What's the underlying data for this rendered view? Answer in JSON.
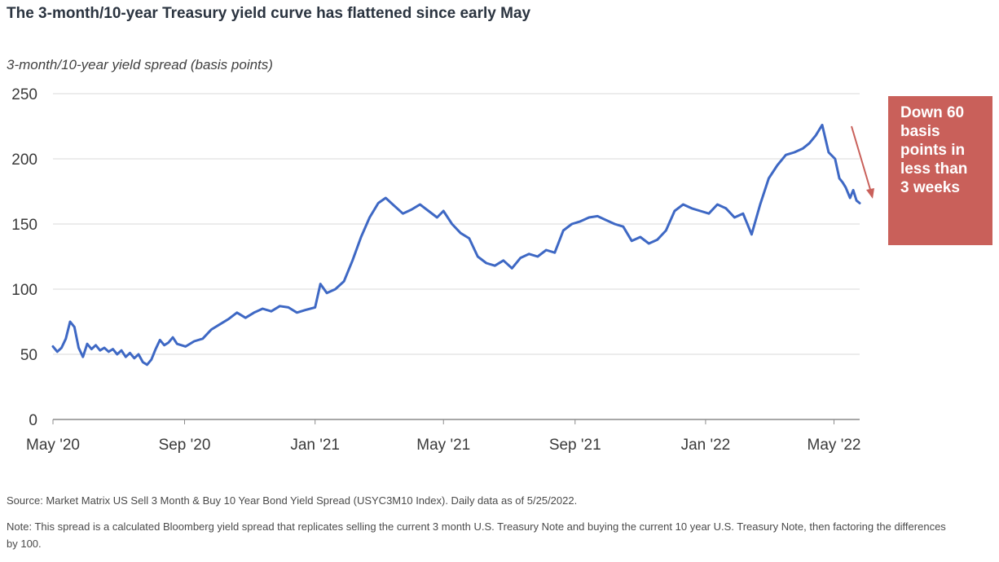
{
  "title": "The 3-month/10-year Treasury yield curve has flattened since early May",
  "callout": {
    "lines": [
      "Down 60",
      "basis",
      "points in",
      "less than",
      "3 weeks"
    ]
  },
  "footer": {
    "source": "Source: Market Matrix US Sell 3 Month & Buy 10 Year Bond Yield Spread (USYC3M10 Index).  Daily data as of 5/25/2022.",
    "note": "Note: This spread is a calculated Bloomberg yield spread that replicates selling the current 3 month U.S. Treasury Note and buying the current 10 year U.S. Treasury Note, then factoring the differences by 100."
  },
  "colors": {
    "line": "#3e68c4",
    "callout": "#c9605a",
    "arrow": "#c9605a",
    "grid": "#d9d9d9"
  },
  "chart_data": {
    "type": "line",
    "title": "The 3-month/10-year Treasury yield curve has flattened since early May",
    "xlabel": "",
    "ylabel": "3-month/10-year yield spread (basis points)",
    "ylim": [
      0,
      250
    ],
    "yticks": [
      0,
      50,
      100,
      150,
      200,
      250
    ],
    "xlim": [
      "2020-05-01",
      "2022-05-25"
    ],
    "xticks": [
      {
        "date": "2020-05-01",
        "label": "May '20"
      },
      {
        "date": "2020-09-01",
        "label": "Sep '20"
      },
      {
        "date": "2021-01-01",
        "label": "Jan '21"
      },
      {
        "date": "2021-05-01",
        "label": "May '21"
      },
      {
        "date": "2021-09-01",
        "label": "Sep '21"
      },
      {
        "date": "2022-01-01",
        "label": "Jan '22"
      },
      {
        "date": "2022-05-01",
        "label": "May '22"
      }
    ],
    "grid": true,
    "legend": "none",
    "series": [
      {
        "x": [
          "2020-05-01",
          "2020-05-05",
          "2020-05-09",
          "2020-05-13",
          "2020-05-17",
          "2020-05-21",
          "2020-05-25",
          "2020-05-29",
          "2020-06-02",
          "2020-06-06",
          "2020-06-10",
          "2020-06-14",
          "2020-06-18",
          "2020-06-22",
          "2020-06-26",
          "2020-06-30",
          "2020-07-04",
          "2020-07-08",
          "2020-07-12",
          "2020-07-16",
          "2020-07-20",
          "2020-07-24",
          "2020-07-28",
          "2020-08-01",
          "2020-08-05",
          "2020-08-09",
          "2020-08-13",
          "2020-08-17",
          "2020-08-21",
          "2020-08-25",
          "2020-08-29",
          "2020-09-02",
          "2020-09-10",
          "2020-09-18",
          "2020-09-26",
          "2020-10-04",
          "2020-10-12",
          "2020-10-20",
          "2020-10-28",
          "2020-11-05",
          "2020-11-13",
          "2020-11-21",
          "2020-11-29",
          "2020-12-07",
          "2020-12-15",
          "2020-12-23",
          "2021-01-01",
          "2021-01-06",
          "2021-01-12",
          "2021-01-20",
          "2021-01-28",
          "2021-02-05",
          "2021-02-13",
          "2021-02-21",
          "2021-03-01",
          "2021-03-08",
          "2021-03-16",
          "2021-03-24",
          "2021-04-01",
          "2021-04-09",
          "2021-04-17",
          "2021-04-25",
          "2021-05-01",
          "2021-05-09",
          "2021-05-17",
          "2021-05-25",
          "2021-06-02",
          "2021-06-10",
          "2021-06-18",
          "2021-06-26",
          "2021-07-04",
          "2021-07-12",
          "2021-07-20",
          "2021-07-28",
          "2021-08-05",
          "2021-08-13",
          "2021-08-21",
          "2021-08-29",
          "2021-09-06",
          "2021-09-14",
          "2021-09-22",
          "2021-09-30",
          "2021-10-08",
          "2021-10-16",
          "2021-10-24",
          "2021-11-01",
          "2021-11-09",
          "2021-11-17",
          "2021-11-25",
          "2021-12-03",
          "2021-12-11",
          "2021-12-19",
          "2021-12-27",
          "2022-01-04",
          "2022-01-12",
          "2022-01-20",
          "2022-01-28",
          "2022-02-05",
          "2022-02-13",
          "2022-02-21",
          "2022-03-01",
          "2022-03-09",
          "2022-03-17",
          "2022-03-25",
          "2022-04-02",
          "2022-04-08",
          "2022-04-14",
          "2022-04-20",
          "2022-04-26",
          "2022-05-02",
          "2022-05-06",
          "2022-05-09",
          "2022-05-12",
          "2022-05-16",
          "2022-05-19",
          "2022-05-22",
          "2022-05-25"
        ],
        "values": [
          56,
          52,
          55,
          62,
          75,
          71,
          55,
          48,
          58,
          54,
          57,
          53,
          55,
          52,
          54,
          50,
          53,
          48,
          51,
          47,
          50,
          44,
          42,
          46,
          54,
          61,
          57,
          59,
          63,
          58,
          57,
          56,
          60,
          62,
          69,
          73,
          77,
          82,
          78,
          82,
          85,
          83,
          87,
          86,
          82,
          84,
          86,
          104,
          97,
          100,
          106,
          122,
          140,
          155,
          166,
          170,
          164,
          158,
          161,
          165,
          160,
          155,
          160,
          150,
          143,
          139,
          125,
          120,
          118,
          122,
          116,
          124,
          127,
          125,
          130,
          128,
          145,
          150,
          152,
          155,
          156,
          153,
          150,
          148,
          137,
          140,
          135,
          138,
          145,
          160,
          165,
          162,
          160,
          158,
          165,
          162,
          155,
          158,
          142,
          165,
          185,
          195,
          203,
          205,
          208,
          212,
          218,
          226,
          205,
          200,
          185,
          182,
          178,
          170,
          176,
          168,
          166
        ]
      }
    ]
  }
}
